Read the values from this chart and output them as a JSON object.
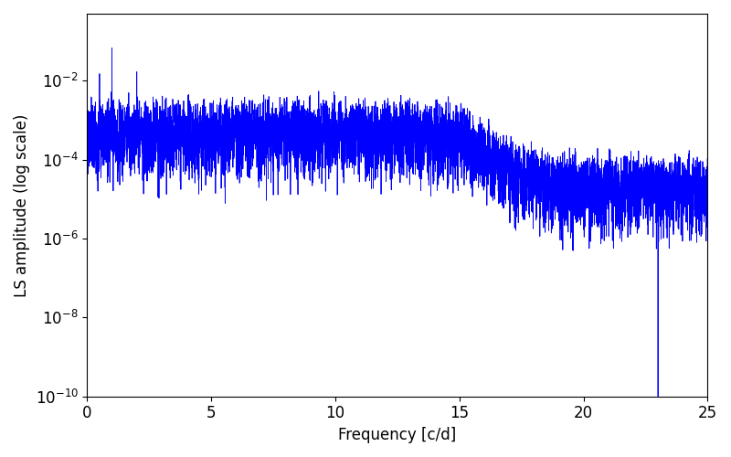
{
  "xlabel": "Frequency [c/d]",
  "ylabel": "LS amplitude (log scale)",
  "xlim": [
    0,
    25
  ],
  "ylim": [
    1e-10,
    0.5
  ],
  "line_color": "#0000ff",
  "line_width": 0.6,
  "yscale": "log",
  "figsize": [
    8.0,
    5.0
  ],
  "dpi": 100,
  "n_points": 8000,
  "freq_max": 25.0,
  "seed": 77,
  "tick_labelsize": 12,
  "label_fontsize": 12
}
